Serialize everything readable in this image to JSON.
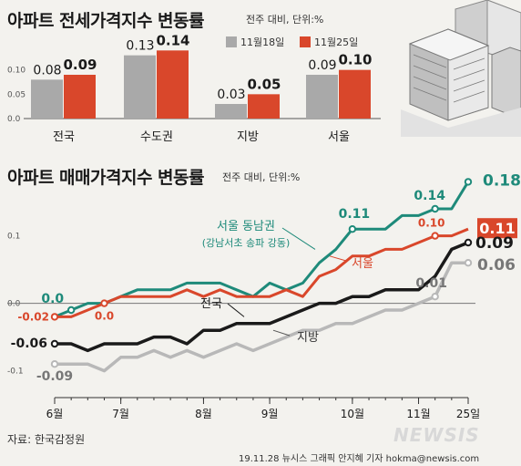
{
  "colors": {
    "gray": "#a9a9a9",
    "red": "#d9472b",
    "teal": "#1e8a7a",
    "black": "#1a1a1a",
    "lightgray": "#b8b8b8"
  },
  "chart_data": [
    {
      "type": "bar",
      "title": "아파트 전세가격지수 변동률",
      "unit_note": "전주 대비, 단위:%",
      "categories": [
        "전국",
        "수도권",
        "지방",
        "서울"
      ],
      "series": [
        {
          "name": "11월18일",
          "values": [
            0.08,
            0.13,
            0.03,
            0.09
          ],
          "labels": [
            "0.08",
            "0.13",
            "0.03",
            "0.09"
          ]
        },
        {
          "name": "11월25일",
          "values": [
            0.09,
            0.14,
            0.05,
            0.1
          ],
          "labels": [
            "0.09",
            "0.14",
            "0.05",
            "0.10"
          ]
        }
      ],
      "yticks": [
        {
          "v": 0.1,
          "label": "0.10"
        },
        {
          "v": 0.05,
          "label": "0.05"
        },
        {
          "v": 0.0,
          "label": "0.0"
        }
      ],
      "ylim": [
        0,
        0.15
      ]
    },
    {
      "type": "line",
      "title": "아파트 매매가격지수 변동률",
      "unit_note": "전주 대비, 단위:%",
      "ylim": [
        -0.11,
        0.19
      ],
      "yticks": [
        {
          "v": 0.1,
          "label": "0.1"
        },
        {
          "v": 0.0,
          "label": "0.0"
        },
        {
          "v": -0.1,
          "label": "-0.1"
        }
      ],
      "xticks": [
        {
          "i": 0,
          "label": "6월"
        },
        {
          "i": 4,
          "label": "7월"
        },
        {
          "i": 9,
          "label": "8월"
        },
        {
          "i": 13,
          "label": "9월"
        },
        {
          "i": 18,
          "label": "10월"
        },
        {
          "i": 22,
          "label": "11월"
        },
        {
          "i": 25,
          "label": "25일"
        }
      ],
      "series": [
        {
          "name": "서울 동남권",
          "sub": "(강남서초 송파 강동)",
          "color_key": "teal",
          "values": [
            -0.02,
            -0.01,
            0.0,
            0.0,
            0.01,
            0.02,
            0.02,
            0.02,
            0.03,
            0.03,
            0.03,
            0.02,
            0.01,
            0.03,
            0.02,
            0.03,
            0.06,
            0.08,
            0.11,
            0.11,
            0.11,
            0.13,
            0.13,
            0.14,
            0.14,
            0.18
          ],
          "annotations": [
            {
              "i": 1,
              "label": "0.0"
            },
            {
              "i": 18,
              "label": "0.11"
            },
            {
              "i": 23,
              "label": "0.14"
            },
            {
              "i": 25,
              "label": "0.18"
            }
          ]
        },
        {
          "name": "서울",
          "color_key": "red",
          "values": [
            -0.02,
            -0.02,
            -0.01,
            0.0,
            0.01,
            0.01,
            0.01,
            0.01,
            0.02,
            0.01,
            0.02,
            0.01,
            0.01,
            0.01,
            0.02,
            0.01,
            0.04,
            0.05,
            0.07,
            0.07,
            0.08,
            0.08,
            0.09,
            0.1,
            0.1,
            0.11
          ],
          "annotations": [
            {
              "i": 0,
              "label": "-0.02"
            },
            {
              "i": 3,
              "label": "0.0"
            },
            {
              "i": 23,
              "label": "0.10"
            },
            {
              "i": 25,
              "label": "0.11"
            }
          ]
        },
        {
          "name": "전국",
          "color_key": "black",
          "values": [
            -0.06,
            -0.06,
            -0.07,
            -0.06,
            -0.06,
            -0.06,
            -0.05,
            -0.05,
            -0.06,
            -0.04,
            -0.04,
            -0.03,
            -0.03,
            -0.03,
            -0.02,
            -0.01,
            0.0,
            0.0,
            0.01,
            0.01,
            0.02,
            0.02,
            0.02,
            0.04,
            0.08,
            0.09
          ],
          "annotations": [
            {
              "i": 0,
              "label": "-0.06"
            },
            {
              "i": 25,
              "label": "0.09"
            }
          ]
        },
        {
          "name": "지방",
          "color_key": "lightgray",
          "values": [
            -0.09,
            -0.09,
            -0.09,
            -0.1,
            -0.08,
            -0.08,
            -0.07,
            -0.08,
            -0.07,
            -0.08,
            -0.07,
            -0.06,
            -0.07,
            -0.06,
            -0.05,
            -0.04,
            -0.04,
            -0.03,
            -0.03,
            -0.02,
            -0.01,
            -0.01,
            0.0,
            0.01,
            0.06,
            0.06
          ],
          "annotations": [
            {
              "i": 0,
              "label": "-0.09"
            },
            {
              "i": 23,
              "label": "0.01"
            },
            {
              "i": 25,
              "label": "0.06"
            }
          ]
        }
      ]
    }
  ],
  "footer": {
    "source": "자료: 한국감정원",
    "credit": "19.11.28  뉴시스 그래픽 안지혜 기자  hokma@newsis.com",
    "watermark": "NEWSIS"
  }
}
